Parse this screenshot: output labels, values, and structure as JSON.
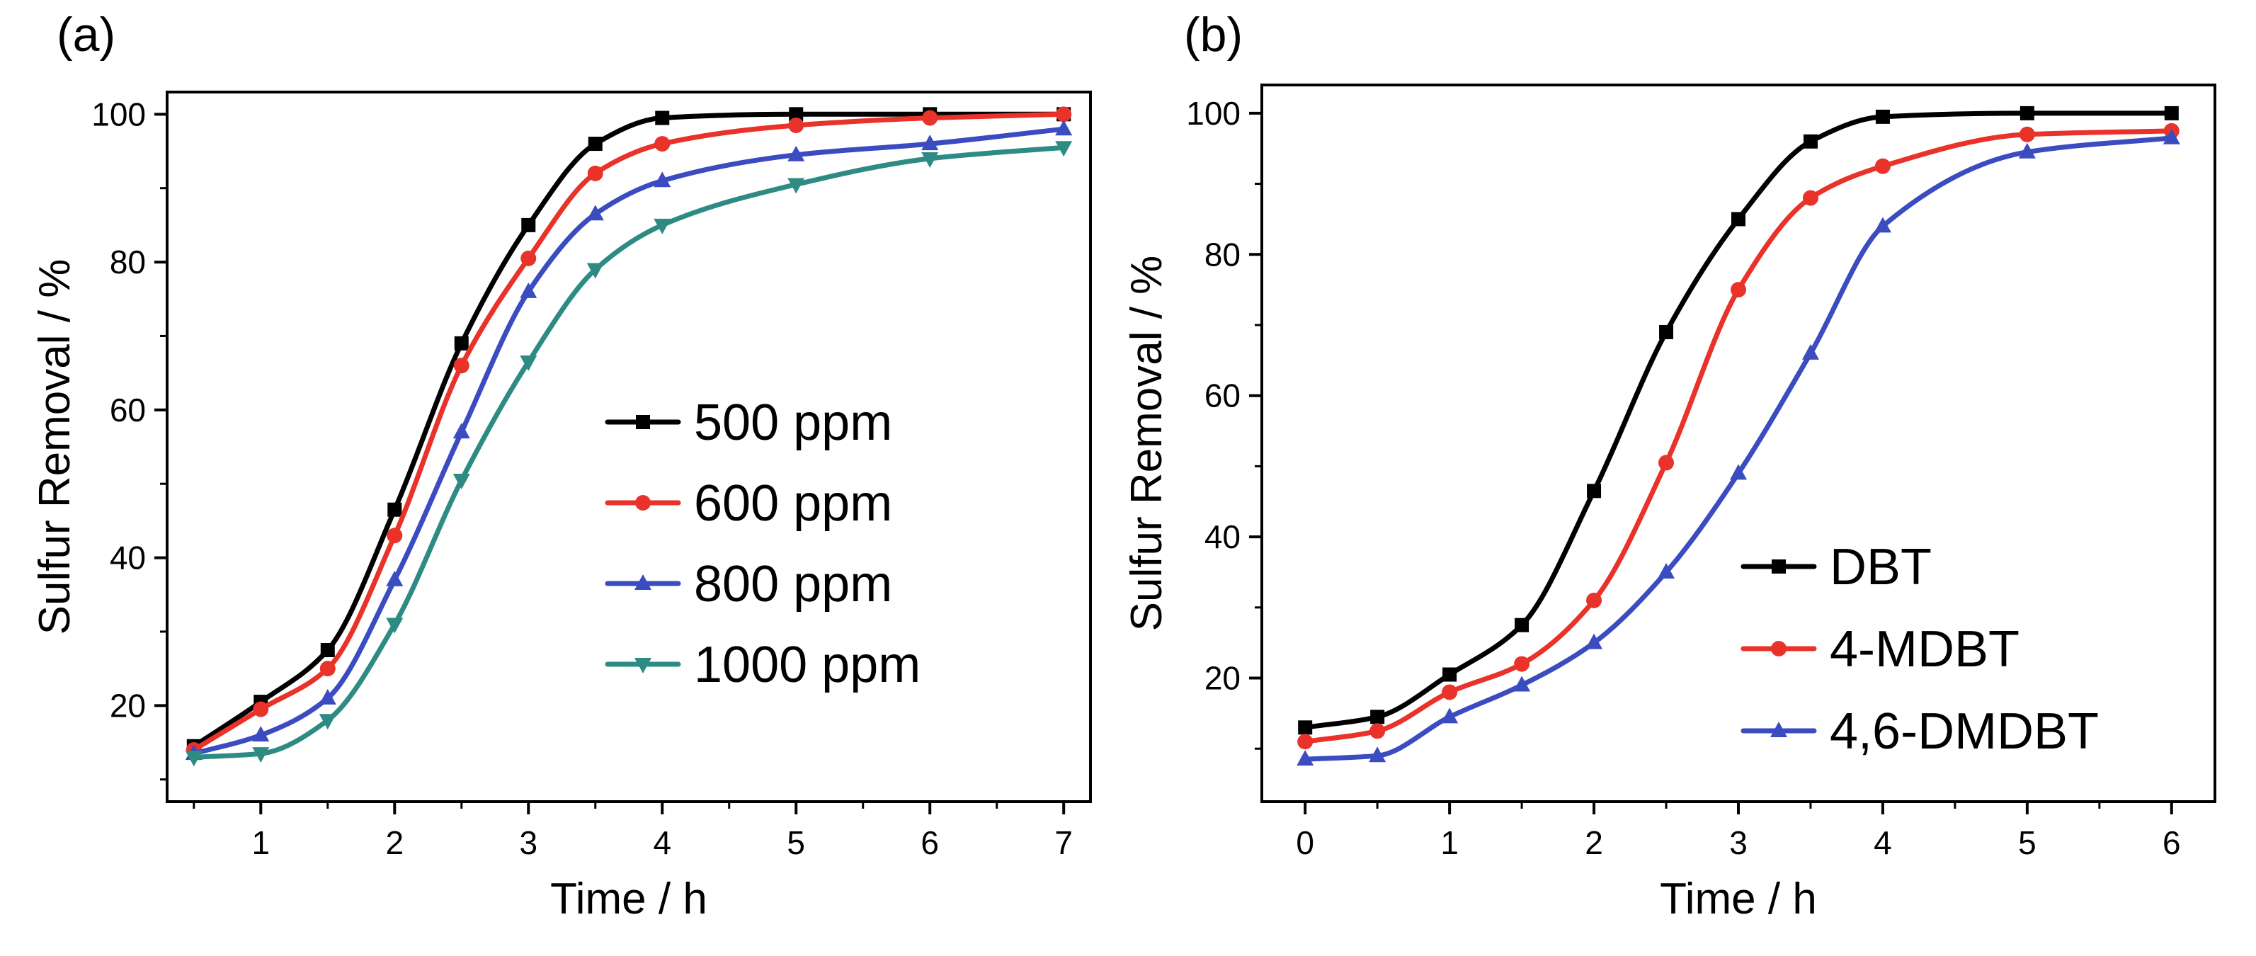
{
  "chart_data": [
    {
      "type": "line",
      "panel_label": "(a)",
      "title": "",
      "xlabel": "Time / h",
      "ylabel": "Sulfur Removal / %",
      "xlim": [
        0.3,
        7.2
      ],
      "ylim": [
        7,
        103
      ],
      "xticks": [
        1,
        2,
        3,
        4,
        5,
        6,
        7
      ],
      "xtick_labels": [
        "1",
        "2",
        "3",
        "4",
        "5",
        "6",
        "7"
      ],
      "xminor": [
        0.5,
        1.5,
        2.5,
        3.5,
        4.5,
        5.5,
        6.5
      ],
      "yticks": [
        20,
        40,
        60,
        80,
        100
      ],
      "ytick_labels": [
        "20",
        "40",
        "60",
        "80",
        "100"
      ],
      "yminor": [
        10,
        30,
        50,
        70,
        90
      ],
      "grid": false,
      "legend_position": "center-right",
      "x": [
        0.5,
        1,
        1.5,
        2,
        2.5,
        3,
        3.5,
        4,
        5,
        6,
        7
      ],
      "series": [
        {
          "name": "500 ppm",
          "marker": "square",
          "color": "#000000",
          "values": [
            14.5,
            20.5,
            27.5,
            46.5,
            69,
            85,
            96,
            99.5,
            100,
            100,
            100
          ]
        },
        {
          "name": "600 ppm",
          "marker": "circle",
          "color": "#e8322a",
          "values": [
            14,
            19.5,
            25,
            43,
            66,
            80.5,
            92,
            96,
            98.5,
            99.5,
            100
          ]
        },
        {
          "name": "800 ppm",
          "marker": "triangle-up",
          "color": "#3b4cc0",
          "values": [
            13.5,
            16,
            21,
            37,
            57,
            76,
            86.5,
            91,
            94.5,
            96,
            98
          ]
        },
        {
          "name": "1000 ppm",
          "marker": "triangle-down",
          "color": "#2e8b84",
          "values": [
            13,
            13.5,
            18,
            31,
            50.5,
            66.5,
            79,
            85,
            90.5,
            94,
            95.5
          ]
        }
      ]
    },
    {
      "type": "line",
      "panel_label": "(b)",
      "title": "",
      "xlabel": "Time / h",
      "ylabel": "Sulfur Removal / %",
      "xlim": [
        -0.3,
        6.3
      ],
      "ylim": [
        2.5,
        104
      ],
      "xticks": [
        0,
        1,
        2,
        3,
        4,
        5,
        6
      ],
      "xtick_labels": [
        "0",
        "1",
        "2",
        "3",
        "4",
        "5",
        "6"
      ],
      "xminor": [
        0.5,
        1.5,
        2.5,
        3.5,
        4.5,
        5.5
      ],
      "yticks": [
        20,
        40,
        60,
        80,
        100
      ],
      "ytick_labels": [
        "20",
        "40",
        "60",
        "80",
        "100"
      ],
      "yminor": [
        10,
        30,
        50,
        70,
        90
      ],
      "grid": false,
      "legend_position": "bottom-right",
      "x": [
        0,
        0.5,
        1,
        1.5,
        2,
        2.5,
        3,
        3.5,
        4,
        5,
        6
      ],
      "series": [
        {
          "name": "DBT",
          "marker": "square",
          "color": "#000000",
          "values": [
            13,
            14.5,
            20.5,
            27.5,
            46.5,
            69,
            85,
            96,
            99.5,
            100,
            100
          ]
        },
        {
          "name": "4-MDBT",
          "marker": "circle",
          "color": "#e8322a",
          "values": [
            11,
            12.5,
            18,
            22,
            31,
            50.5,
            75,
            88,
            92.5,
            97,
            97.5
          ]
        },
        {
          "name": "4,6-DMDBT",
          "marker": "triangle-up",
          "color": "#3b4cc0",
          "values": [
            8.5,
            9,
            14.5,
            19,
            25,
            35,
            49,
            66,
            84,
            94.5,
            96.5
          ]
        }
      ]
    }
  ]
}
